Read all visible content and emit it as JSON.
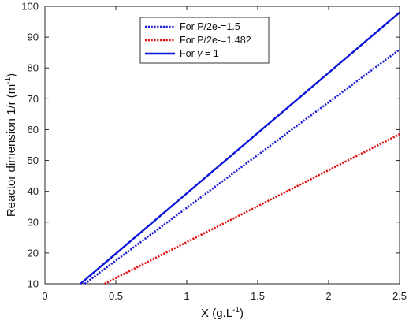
{
  "chart_data": {
    "type": "line",
    "xlabel": "X (g.L",
    "xlabel_sup": "-1",
    "xlabel_end": ")",
    "ylabel": "Reactor dimension 1/r (m",
    "ylabel_sup": "-1",
    "ylabel_end": ")",
    "xlim": [
      0,
      2.5
    ],
    "ylim": [
      10,
      100
    ],
    "xticks": [
      0,
      0.5,
      1,
      1.5,
      2,
      2.5
    ],
    "yticks": [
      10,
      20,
      30,
      40,
      50,
      60,
      70,
      80,
      90,
      100
    ],
    "xtick_labels": [
      "0",
      "0.5",
      "1",
      "1.5",
      "2",
      "2.5"
    ],
    "ytick_labels": [
      "10",
      "20",
      "30",
      "40",
      "50",
      "60",
      "70",
      "80",
      "90",
      "100"
    ],
    "grid": false,
    "legend_position": "top-center",
    "series": [
      {
        "name": "For P/2e-=1.5",
        "color": "#1f1fd6",
        "style": "dotted",
        "x": [
          0.28,
          2.5
        ],
        "y": [
          10,
          86
        ]
      },
      {
        "name": "For P/2e-=1.482",
        "color": "#e01010",
        "style": "dotted",
        "x": [
          0.42,
          2.5
        ],
        "y": [
          10,
          58.5
        ]
      },
      {
        "name_prefix": "For ",
        "name_symbol": "γ",
        "name_suffix": " = 1",
        "color": "#0a14d8",
        "style": "solid",
        "x": [
          0.25,
          2.5
        ],
        "y": [
          10,
          98
        ]
      }
    ]
  }
}
